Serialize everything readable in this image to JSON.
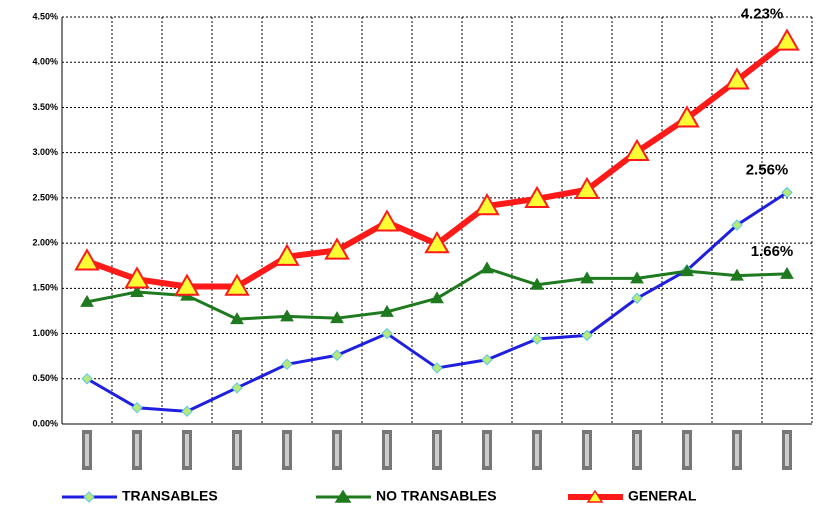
{
  "chart_data": {
    "type": "line",
    "categories": [
      null,
      null,
      null,
      null,
      null,
      null,
      null,
      null,
      null,
      null,
      null,
      null,
      null,
      null,
      null
    ],
    "ylim": [
      0,
      4.5
    ],
    "yticks": [
      {
        "value": 0,
        "label": "0.00%"
      },
      {
        "value": 0.5,
        "label": "0.50%"
      },
      {
        "value": 1,
        "label": "1.00%"
      },
      {
        "value": 1.5,
        "label": "1.50%"
      },
      {
        "value": 2,
        "label": "2.00%"
      },
      {
        "value": 2.5,
        "label": "2.50%"
      },
      {
        "value": 3,
        "label": "3.00%"
      },
      {
        "value": 3.5,
        "label": "3.50%"
      },
      {
        "value": 4,
        "label": "4.00%"
      },
      {
        "value": 4.5,
        "label": "4.50%"
      }
    ],
    "grid": true,
    "legend": "bottom",
    "series": [
      {
        "name": "TRANSABLES",
        "color": "#1f1fe0",
        "marker": "diamond",
        "marker_color": "#b8e878",
        "values": [
          0.5,
          0.18,
          0.14,
          0.4,
          0.66,
          0.76,
          1.0,
          0.62,
          0.71,
          0.94,
          0.98,
          1.39,
          1.7,
          2.2,
          2.56
        ],
        "value_labels": [
          null,
          null,
          null,
          null,
          null,
          null,
          null,
          null,
          null,
          null,
          null,
          null,
          null,
          null,
          "2.56%"
        ]
      },
      {
        "name": "NO TRANSABLES",
        "color": "#1f7a1f",
        "marker": "triangle",
        "marker_color": "#1f7a1f",
        "values": [
          1.35,
          1.46,
          1.42,
          1.16,
          1.19,
          1.17,
          1.24,
          1.39,
          1.72,
          1.54,
          1.61,
          1.61,
          1.69,
          1.64,
          1.66
        ],
        "value_labels": [
          null,
          null,
          null,
          null,
          null,
          null,
          null,
          null,
          null,
          null,
          null,
          null,
          null,
          null,
          "1.66%"
        ]
      },
      {
        "name": "GENERAL",
        "color": "#ff1a1a",
        "marker": "triangle",
        "marker_color": "#ffff33",
        "values": [
          1.8,
          1.6,
          1.52,
          1.52,
          1.85,
          1.92,
          2.23,
          1.99,
          2.41,
          2.49,
          2.59,
          3.01,
          3.38,
          3.8,
          4.23
        ],
        "value_labels": [
          null,
          null,
          null,
          null,
          null,
          null,
          null,
          null,
          null,
          null,
          null,
          null,
          null,
          null,
          "4.23%"
        ]
      }
    ]
  }
}
